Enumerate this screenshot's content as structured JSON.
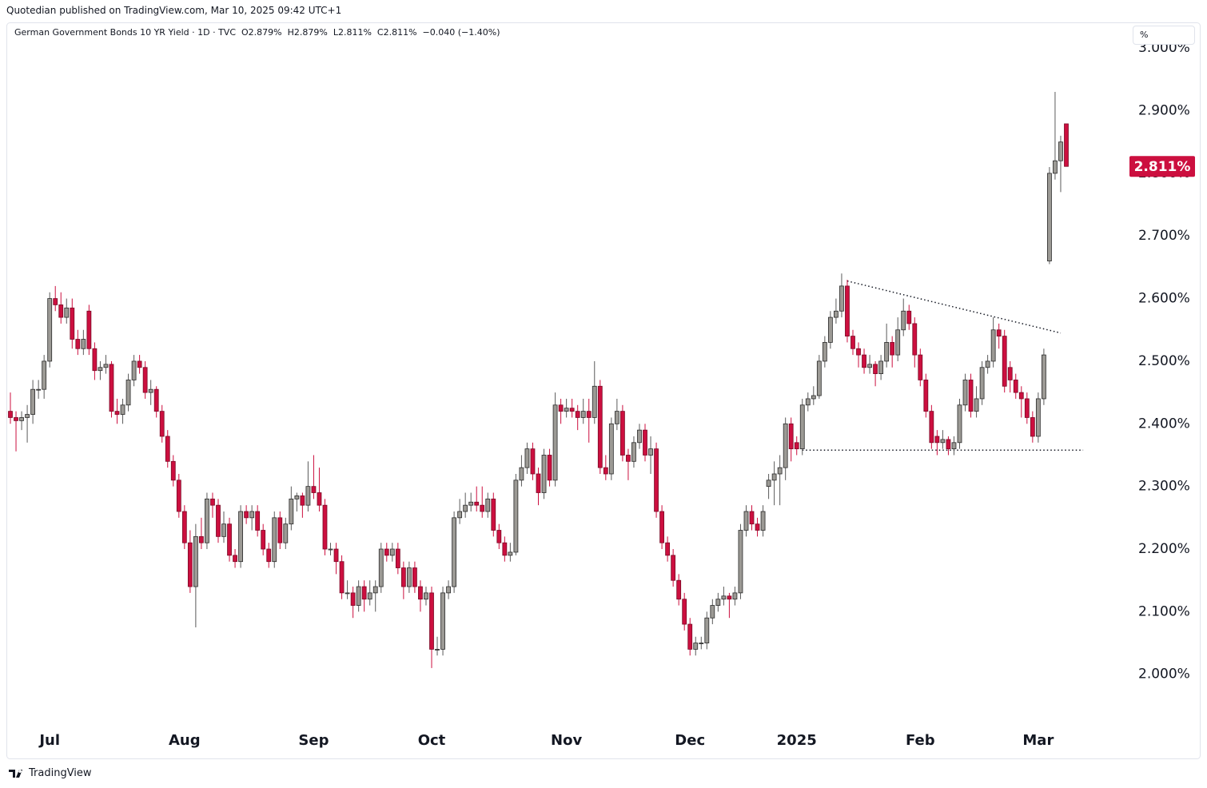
{
  "header": "Quotedian published on TradingView.com, Mar 10, 2025 09:42 UTC+1",
  "footer": "TradingView",
  "chart_data": {
    "type": "candlestick",
    "title": "German Government Bonds 10 YR Yield · 1D · TVC",
    "legend_items": [
      "O2.879%",
      "H2.879%",
      "L2.811%",
      "C2.811%",
      "−0.040 (−1.40%)"
    ],
    "y_unit": "%",
    "up_color": "#9c9a95",
    "down_color": "#cc0f3f",
    "outline_color": "#2a2a2a",
    "grid": false,
    "last_value": 2.811,
    "last_value_label": "2.811%",
    "ylim": [
      1.918,
      3.041
    ],
    "yticks": [
      {
        "value": 2.0,
        "label": "2.000%"
      },
      {
        "value": 2.1,
        "label": "2.100%"
      },
      {
        "value": 2.2,
        "label": "2.200%"
      },
      {
        "value": 2.3,
        "label": "2.300%"
      },
      {
        "value": 2.4,
        "label": "2.400%"
      },
      {
        "value": 2.5,
        "label": "2.500%"
      },
      {
        "value": 2.6,
        "label": "2.600%"
      },
      {
        "value": 2.7,
        "label": "2.700%"
      },
      {
        "value": 2.8,
        "label": "2.800%"
      },
      {
        "value": 2.9,
        "label": "2.900%"
      },
      {
        "value": 3.0,
        "label": "3.000%"
      }
    ],
    "trendlines": [
      {
        "x": [
          149,
          187
        ],
        "y": [
          2.628,
          2.545
        ]
      },
      {
        "x": [
          141,
          191
        ],
        "y": [
          2.358,
          2.358
        ]
      }
    ],
    "categories": [
      null,
      null,
      null,
      null,
      null,
      null,
      null,
      "Jul",
      null,
      null,
      null,
      null,
      null,
      null,
      null,
      null,
      null,
      null,
      null,
      null,
      null,
      null,
      null,
      null,
      null,
      null,
      null,
      null,
      null,
      null,
      null,
      "Aug",
      null,
      null,
      null,
      null,
      null,
      null,
      null,
      null,
      null,
      null,
      null,
      null,
      null,
      null,
      null,
      null,
      null,
      null,
      null,
      null,
      null,
      null,
      "Sep",
      null,
      null,
      null,
      null,
      null,
      null,
      null,
      null,
      null,
      null,
      null,
      null,
      null,
      null,
      null,
      null,
      null,
      null,
      null,
      null,
      "Oct",
      null,
      null,
      null,
      null,
      null,
      null,
      null,
      null,
      null,
      null,
      null,
      null,
      null,
      null,
      null,
      null,
      null,
      null,
      null,
      null,
      null,
      null,
      null,
      "Nov",
      null,
      null,
      null,
      null,
      null,
      null,
      null,
      null,
      null,
      null,
      null,
      null,
      null,
      null,
      null,
      null,
      null,
      null,
      null,
      null,
      null,
      "Dec",
      null,
      null,
      null,
      null,
      null,
      null,
      null,
      null,
      null,
      null,
      null,
      null,
      null,
      null,
      null,
      null,
      null,
      null,
      "2025",
      null,
      null,
      null,
      null,
      null,
      null,
      null,
      null,
      null,
      null,
      null,
      null,
      null,
      null,
      null,
      null,
      null,
      null,
      null,
      null,
      null,
      "Feb",
      null,
      null,
      null,
      null,
      null,
      null,
      null,
      null,
      null,
      null,
      null,
      null,
      null,
      null,
      null,
      null,
      null,
      null,
      null,
      null,
      "Mar",
      null,
      null,
      null,
      null,
      null
    ],
    "values": [
      [
        2.42,
        2.45,
        2.4,
        2.41
      ],
      [
        2.41,
        2.42,
        2.356,
        2.405
      ],
      [
        2.405,
        2.42,
        2.39,
        2.41
      ],
      [
        2.41,
        2.43,
        2.37,
        2.415
      ],
      [
        2.415,
        2.47,
        2.4,
        2.455
      ],
      [
        2.455,
        2.47,
        2.44,
        2.455
      ],
      [
        2.455,
        2.51,
        2.44,
        2.5
      ],
      [
        2.5,
        2.61,
        2.49,
        2.6
      ],
      [
        2.6,
        2.62,
        2.58,
        2.59
      ],
      [
        2.59,
        2.61,
        2.56,
        2.57
      ],
      [
        2.57,
        2.6,
        2.56,
        2.585
      ],
      [
        2.585,
        2.6,
        2.52,
        2.535
      ],
      [
        2.535,
        2.55,
        2.51,
        2.52
      ],
      [
        2.52,
        2.55,
        2.51,
        2.535
      ],
      [
        2.58,
        2.59,
        2.51,
        2.52
      ],
      [
        2.52,
        2.53,
        2.47,
        2.485
      ],
      [
        2.485,
        2.5,
        2.47,
        2.49
      ],
      [
        2.49,
        2.51,
        2.48,
        2.495
      ],
      [
        2.495,
        2.5,
        2.41,
        2.42
      ],
      [
        2.42,
        2.44,
        2.4,
        2.415
      ],
      [
        2.415,
        2.44,
        2.4,
        2.43
      ],
      [
        2.43,
        2.48,
        2.42,
        2.47
      ],
      [
        2.47,
        2.51,
        2.46,
        2.5
      ],
      [
        2.5,
        2.51,
        2.48,
        2.49
      ],
      [
        2.49,
        2.5,
        2.44,
        2.45
      ],
      [
        2.45,
        2.47,
        2.43,
        2.455
      ],
      [
        2.455,
        2.46,
        2.41,
        2.42
      ],
      [
        2.42,
        2.43,
        2.37,
        2.38
      ],
      [
        2.38,
        2.39,
        2.33,
        2.34
      ],
      [
        2.34,
        2.35,
        2.3,
        2.31
      ],
      [
        2.31,
        2.32,
        2.25,
        2.26
      ],
      [
        2.26,
        2.27,
        2.2,
        2.21
      ],
      [
        2.21,
        2.23,
        2.13,
        2.14
      ],
      [
        2.14,
        2.24,
        2.075,
        2.22
      ],
      [
        2.22,
        2.25,
        2.2,
        2.21
      ],
      [
        2.21,
        2.29,
        2.2,
        2.28
      ],
      [
        2.28,
        2.29,
        2.25,
        2.27
      ],
      [
        2.27,
        2.28,
        2.21,
        2.22
      ],
      [
        2.22,
        2.26,
        2.21,
        2.24
      ],
      [
        2.24,
        2.25,
        2.18,
        2.19
      ],
      [
        2.19,
        2.2,
        2.17,
        2.18
      ],
      [
        2.18,
        2.27,
        2.17,
        2.26
      ],
      [
        2.26,
        2.27,
        2.24,
        2.25
      ],
      [
        2.25,
        2.27,
        2.23,
        2.26
      ],
      [
        2.26,
        2.27,
        2.22,
        2.23
      ],
      [
        2.23,
        2.24,
        2.19,
        2.2
      ],
      [
        2.2,
        2.21,
        2.17,
        2.18
      ],
      [
        2.18,
        2.26,
        2.17,
        2.25
      ],
      [
        2.25,
        2.26,
        2.2,
        2.21
      ],
      [
        2.21,
        2.25,
        2.2,
        2.24
      ],
      [
        2.24,
        2.3,
        2.23,
        2.28
      ],
      [
        2.28,
        2.29,
        2.26,
        2.285
      ],
      [
        2.285,
        2.29,
        2.25,
        2.27
      ],
      [
        2.27,
        2.34,
        2.26,
        2.3
      ],
      [
        2.3,
        2.35,
        2.28,
        2.29
      ],
      [
        2.29,
        2.33,
        2.26,
        2.27
      ],
      [
        2.27,
        2.28,
        2.19,
        2.2
      ],
      [
        2.2,
        2.21,
        2.19,
        2.2
      ],
      [
        2.2,
        2.21,
        2.16,
        2.18
      ],
      [
        2.18,
        2.19,
        2.12,
        2.13
      ],
      [
        2.13,
        2.15,
        2.12,
        2.13
      ],
      [
        2.13,
        2.14,
        2.09,
        2.11
      ],
      [
        2.11,
        2.15,
        2.1,
        2.14
      ],
      [
        2.14,
        2.15,
        2.1,
        2.12
      ],
      [
        2.12,
        2.15,
        2.11,
        2.13
      ],
      [
        2.13,
        2.15,
        2.1,
        2.14
      ],
      [
        2.14,
        2.21,
        2.13,
        2.2
      ],
      [
        2.2,
        2.21,
        2.18,
        2.19
      ],
      [
        2.19,
        2.21,
        2.18,
        2.2
      ],
      [
        2.2,
        2.21,
        2.16,
        2.17
      ],
      [
        2.17,
        2.18,
        2.12,
        2.14
      ],
      [
        2.14,
        2.18,
        2.13,
        2.17
      ],
      [
        2.17,
        2.18,
        2.13,
        2.14
      ],
      [
        2.14,
        2.15,
        2.1,
        2.12
      ],
      [
        2.12,
        2.14,
        2.11,
        2.13
      ],
      [
        2.13,
        2.14,
        2.01,
        2.04
      ],
      [
        2.04,
        2.06,
        2.03,
        2.04
      ],
      [
        2.04,
        2.14,
        2.03,
        2.13
      ],
      [
        2.13,
        2.15,
        2.12,
        2.14
      ],
      [
        2.14,
        2.26,
        2.13,
        2.25
      ],
      [
        2.25,
        2.28,
        2.24,
        2.26
      ],
      [
        2.26,
        2.29,
        2.25,
        2.27
      ],
      [
        2.27,
        2.29,
        2.26,
        2.275
      ],
      [
        2.275,
        2.3,
        2.26,
        2.27
      ],
      [
        2.27,
        2.3,
        2.25,
        2.26
      ],
      [
        2.26,
        2.29,
        2.25,
        2.28
      ],
      [
        2.28,
        2.29,
        2.22,
        2.23
      ],
      [
        2.23,
        2.24,
        2.2,
        2.21
      ],
      [
        2.21,
        2.22,
        2.18,
        2.19
      ],
      [
        2.19,
        2.21,
        2.18,
        2.195
      ],
      [
        2.195,
        2.32,
        2.19,
        2.31
      ],
      [
        2.31,
        2.35,
        2.3,
        2.33
      ],
      [
        2.33,
        2.37,
        2.32,
        2.36
      ],
      [
        2.36,
        2.37,
        2.31,
        2.32
      ],
      [
        2.32,
        2.33,
        2.27,
        2.29
      ],
      [
        2.29,
        2.36,
        2.28,
        2.35
      ],
      [
        2.35,
        2.36,
        2.3,
        2.31
      ],
      [
        2.31,
        2.45,
        2.3,
        2.43
      ],
      [
        2.43,
        2.44,
        2.4,
        2.42
      ],
      [
        2.42,
        2.44,
        2.41,
        2.425
      ],
      [
        2.425,
        2.44,
        2.41,
        2.42
      ],
      [
        2.42,
        2.43,
        2.39,
        2.41
      ],
      [
        2.41,
        2.44,
        2.4,
        2.42
      ],
      [
        2.42,
        2.44,
        2.37,
        2.41
      ],
      [
        2.41,
        2.5,
        2.4,
        2.46
      ],
      [
        2.46,
        2.47,
        2.32,
        2.33
      ],
      [
        2.33,
        2.35,
        2.31,
        2.32
      ],
      [
        2.32,
        2.41,
        2.31,
        2.4
      ],
      [
        2.4,
        2.44,
        2.39,
        2.42
      ],
      [
        2.42,
        2.43,
        2.34,
        2.35
      ],
      [
        2.35,
        2.36,
        2.31,
        2.34
      ],
      [
        2.34,
        2.38,
        2.33,
        2.37
      ],
      [
        2.37,
        2.4,
        2.36,
        2.39
      ],
      [
        2.39,
        2.4,
        2.34,
        2.35
      ],
      [
        2.35,
        2.38,
        2.32,
        2.36
      ],
      [
        2.36,
        2.37,
        2.25,
        2.26
      ],
      [
        2.26,
        2.27,
        2.2,
        2.21
      ],
      [
        2.21,
        2.22,
        2.18,
        2.19
      ],
      [
        2.19,
        2.2,
        2.14,
        2.15
      ],
      [
        2.15,
        2.16,
        2.11,
        2.12
      ],
      [
        2.12,
        2.13,
        2.07,
        2.08
      ],
      [
        2.08,
        2.09,
        2.03,
        2.04
      ],
      [
        2.04,
        2.06,
        2.03,
        2.05
      ],
      [
        2.05,
        2.06,
        2.04,
        2.05
      ],
      [
        2.05,
        2.1,
        2.04,
        2.09
      ],
      [
        2.09,
        2.12,
        2.08,
        2.11
      ],
      [
        2.11,
        2.13,
        2.1,
        2.12
      ],
      [
        2.12,
        2.14,
        2.11,
        2.125
      ],
      [
        2.125,
        2.13,
        2.09,
        2.12
      ],
      [
        2.12,
        2.14,
        2.11,
        2.13
      ],
      [
        2.13,
        2.24,
        2.12,
        2.23
      ],
      [
        2.23,
        2.27,
        2.22,
        2.26
      ],
      [
        2.26,
        2.27,
        2.23,
        2.24
      ],
      [
        2.24,
        2.25,
        2.22,
        2.23
      ],
      [
        2.23,
        2.27,
        2.22,
        2.26
      ],
      [
        2.3,
        2.32,
        2.28,
        2.31
      ],
      [
        2.31,
        2.34,
        2.27,
        2.32
      ],
      [
        2.32,
        2.35,
        2.27,
        2.33
      ],
      [
        2.33,
        2.41,
        2.31,
        2.4
      ],
      [
        2.4,
        2.41,
        2.34,
        2.36
      ],
      [
        2.37,
        2.38,
        2.35,
        2.36
      ],
      [
        2.36,
        2.44,
        2.35,
        2.43
      ],
      [
        2.43,
        2.45,
        2.42,
        2.44
      ],
      [
        2.44,
        2.46,
        2.43,
        2.445
      ],
      [
        2.445,
        2.51,
        2.44,
        2.5
      ],
      [
        2.5,
        2.54,
        2.49,
        2.53
      ],
      [
        2.53,
        2.58,
        2.52,
        2.57
      ],
      [
        2.57,
        2.6,
        2.56,
        2.58
      ],
      [
        2.58,
        2.64,
        2.57,
        2.62
      ],
      [
        2.62,
        2.63,
        2.53,
        2.54
      ],
      [
        2.54,
        2.55,
        2.51,
        2.52
      ],
      [
        2.52,
        2.53,
        2.49,
        2.51
      ],
      [
        2.51,
        2.52,
        2.48,
        2.49
      ],
      [
        2.49,
        2.51,
        2.48,
        2.495
      ],
      [
        2.495,
        2.5,
        2.46,
        2.48
      ],
      [
        2.48,
        2.51,
        2.47,
        2.5
      ],
      [
        2.5,
        2.56,
        2.49,
        2.53
      ],
      [
        2.53,
        2.54,
        2.49,
        2.51
      ],
      [
        2.51,
        2.57,
        2.5,
        2.55
      ],
      [
        2.55,
        2.6,
        2.54,
        2.58
      ],
      [
        2.58,
        2.59,
        2.55,
        2.56
      ],
      [
        2.56,
        2.57,
        2.49,
        2.51
      ],
      [
        2.51,
        2.52,
        2.46,
        2.47
      ],
      [
        2.47,
        2.48,
        2.41,
        2.42
      ],
      [
        2.42,
        2.43,
        2.36,
        2.37
      ],
      [
        2.38,
        2.39,
        2.35,
        2.37
      ],
      [
        2.37,
        2.39,
        2.36,
        2.375
      ],
      [
        2.375,
        2.38,
        2.35,
        2.36
      ],
      [
        2.36,
        2.38,
        2.35,
        2.37
      ],
      [
        2.37,
        2.44,
        2.36,
        2.43
      ],
      [
        2.43,
        2.48,
        2.42,
        2.47
      ],
      [
        2.47,
        2.48,
        2.41,
        2.42
      ],
      [
        2.42,
        2.46,
        2.41,
        2.44
      ],
      [
        2.44,
        2.5,
        2.43,
        2.49
      ],
      [
        2.49,
        2.51,
        2.48,
        2.5
      ],
      [
        2.5,
        2.57,
        2.49,
        2.55
      ],
      [
        2.55,
        2.56,
        2.52,
        2.54
      ],
      [
        2.54,
        2.55,
        2.45,
        2.46
      ],
      [
        2.49,
        2.5,
        2.45,
        2.47
      ],
      [
        2.47,
        2.48,
        2.44,
        2.45
      ],
      [
        2.45,
        2.46,
        2.41,
        2.44
      ],
      [
        2.44,
        2.45,
        2.4,
        2.41
      ],
      [
        2.41,
        2.42,
        2.37,
        2.38
      ],
      [
        2.38,
        2.45,
        2.37,
        2.44
      ],
      [
        2.44,
        2.52,
        2.43,
        2.51
      ],
      [
        2.66,
        2.81,
        2.655,
        2.8
      ],
      [
        2.8,
        2.93,
        2.79,
        2.82
      ],
      [
        2.82,
        2.86,
        2.77,
        2.85
      ],
      [
        2.879,
        2.879,
        2.811,
        2.811
      ]
    ]
  }
}
